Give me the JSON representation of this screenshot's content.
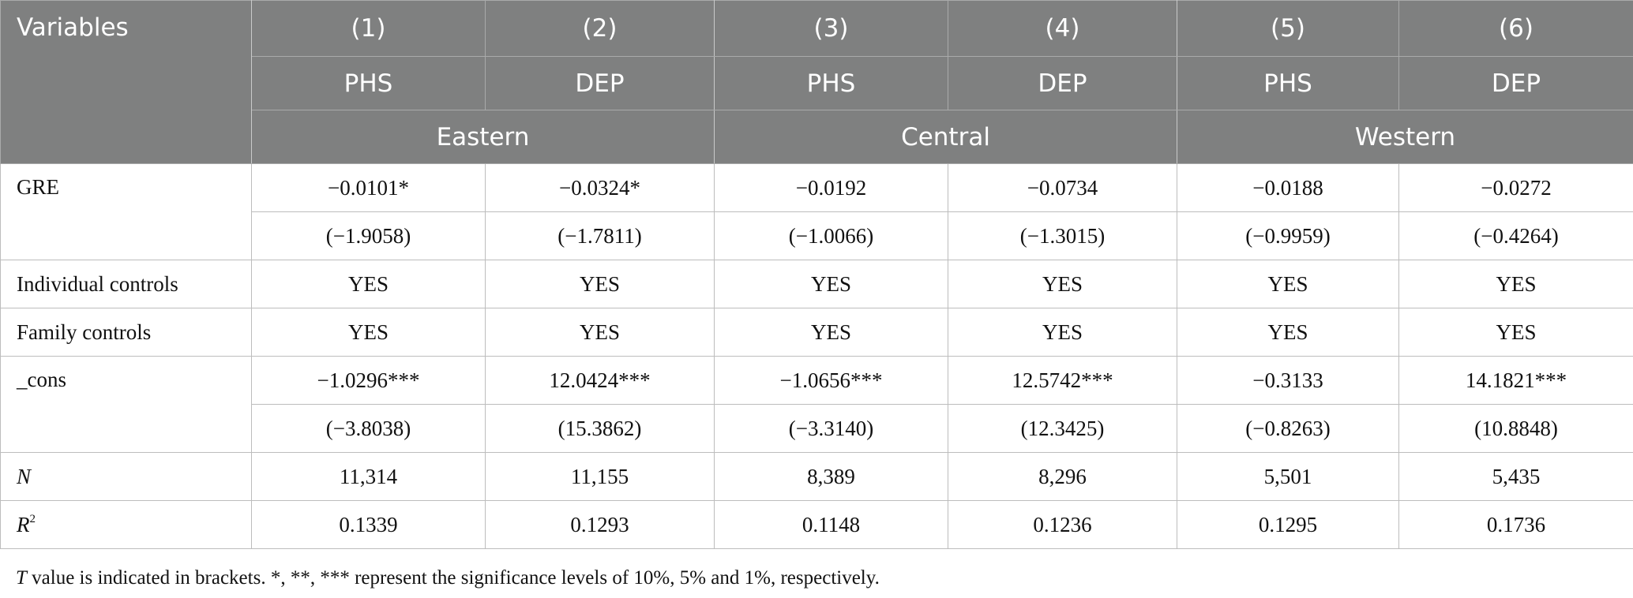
{
  "table": {
    "variables_header": "Variables",
    "column_numbers": [
      "(1)",
      "(2)",
      "(3)",
      "(4)",
      "(5)",
      "(6)"
    ],
    "dependent_vars": [
      "PHS",
      "DEP",
      "PHS",
      "DEP",
      "PHS",
      "DEP"
    ],
    "regions": [
      "Eastern",
      "Central",
      "Western"
    ],
    "rows": {
      "gre": {
        "label": "GRE",
        "coef": [
          "−0.0101*",
          "−0.0324*",
          "−0.0192",
          "−0.0734",
          "−0.0188",
          "−0.0272"
        ],
        "tval": [
          "(−1.9058)",
          "(−1.7811)",
          "(−1.0066)",
          "(−1.3015)",
          "(−0.9959)",
          "(−0.4264)"
        ]
      },
      "individual_controls": {
        "label": "Individual controls",
        "values": [
          "YES",
          "YES",
          "YES",
          "YES",
          "YES",
          "YES"
        ]
      },
      "family_controls": {
        "label": "Family controls",
        "values": [
          "YES",
          "YES",
          "YES",
          "YES",
          "YES",
          "YES"
        ]
      },
      "cons": {
        "label": "_cons",
        "coef": [
          "−1.0296***",
          "12.0424***",
          "−1.0656***",
          "12.5742***",
          "−0.3133",
          "14.1821***"
        ],
        "tval": [
          "(−3.8038)",
          "(15.3862)",
          "(−3.3140)",
          "(12.3425)",
          "(−0.8263)",
          "(10.8848)"
        ]
      },
      "n": {
        "label": "N",
        "values": [
          "11,314",
          "11,155",
          "8,389",
          "8,296",
          "5,501",
          "5,435"
        ]
      },
      "r2": {
        "label": "R",
        "label_sup": "2",
        "values": [
          "0.1339",
          "0.1293",
          "0.1148",
          "0.1236",
          "0.1295",
          "0.1736"
        ]
      }
    }
  },
  "note": {
    "italic_lead": "T",
    "text": " value is indicated in brackets. *, **, *** represent the significance levels of 10%, 5% and 1%, respectively."
  }
}
